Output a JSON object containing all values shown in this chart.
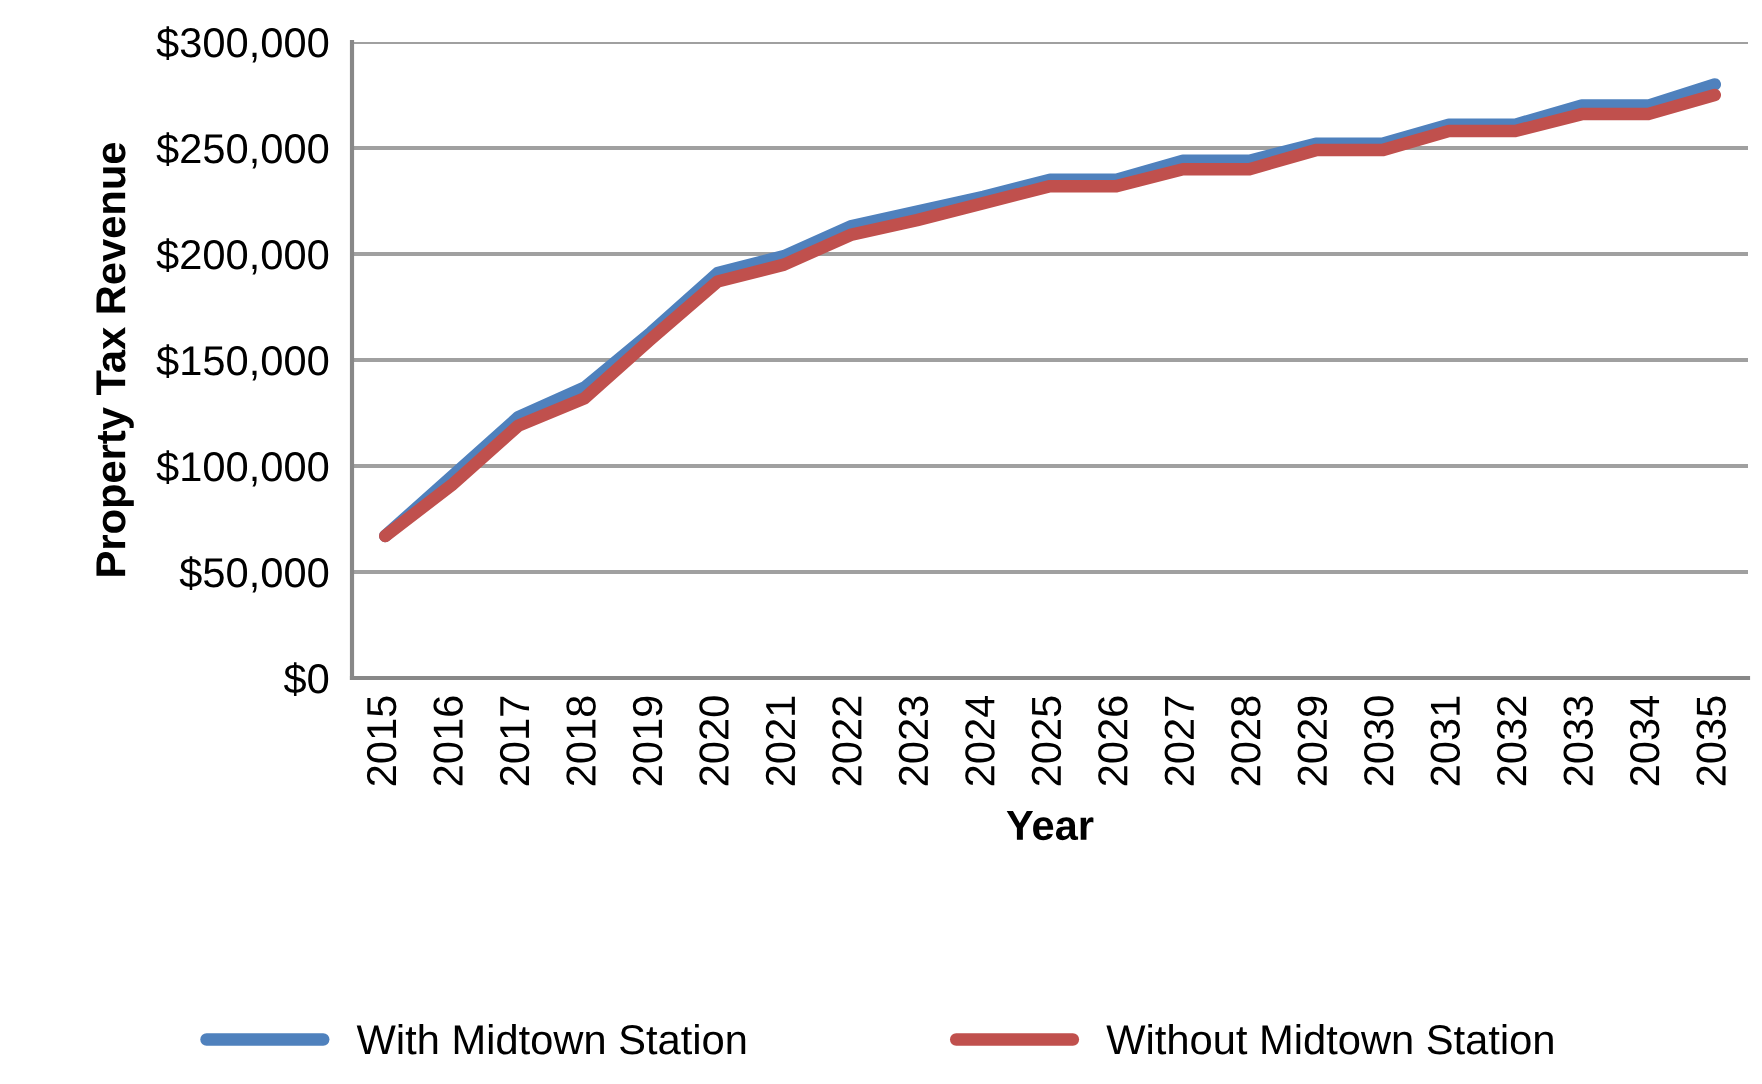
{
  "chart_data": {
    "type": "line",
    "xlabel": "Year",
    "ylabel": "Property Tax Revenue",
    "categories": [
      "2015",
      "2016",
      "2017",
      "2018",
      "2019",
      "2020",
      "2021",
      "2022",
      "2023",
      "2024",
      "2025",
      "2026",
      "2027",
      "2028",
      "2029",
      "2030",
      "2031",
      "2032",
      "2033",
      "2034",
      "2035"
    ],
    "series": [
      {
        "name": "With Midtown Station",
        "color": "#4f81bd",
        "values": [
          67000,
          95000,
          123000,
          137000,
          163000,
          191000,
          199000,
          213000,
          220000,
          227000,
          235000,
          235000,
          244000,
          244000,
          252000,
          252000,
          261000,
          261000,
          270000,
          270000,
          280000
        ]
      },
      {
        "name": "Without Midtown Station",
        "color": "#c0504d",
        "values": [
          67000,
          91000,
          119000,
          132000,
          160000,
          187000,
          195000,
          209000,
          216000,
          224000,
          232000,
          232000,
          240000,
          240000,
          249000,
          249000,
          258000,
          258000,
          266000,
          266000,
          275000
        ]
      }
    ],
    "ylim": [
      0,
      300000
    ],
    "yticks": [
      {
        "value": 0,
        "label": "$0"
      },
      {
        "value": 50000,
        "label": "$50,000"
      },
      {
        "value": 100000,
        "label": "$100,000"
      },
      {
        "value": 150000,
        "label": "$150,000"
      },
      {
        "value": 200000,
        "label": "$200,000"
      },
      {
        "value": 250000,
        "label": "$250,000"
      },
      {
        "value": 300000,
        "label": "$300,000"
      }
    ],
    "grid": "y",
    "legend": "bottom",
    "marker": "none",
    "line_style": "solid"
  }
}
